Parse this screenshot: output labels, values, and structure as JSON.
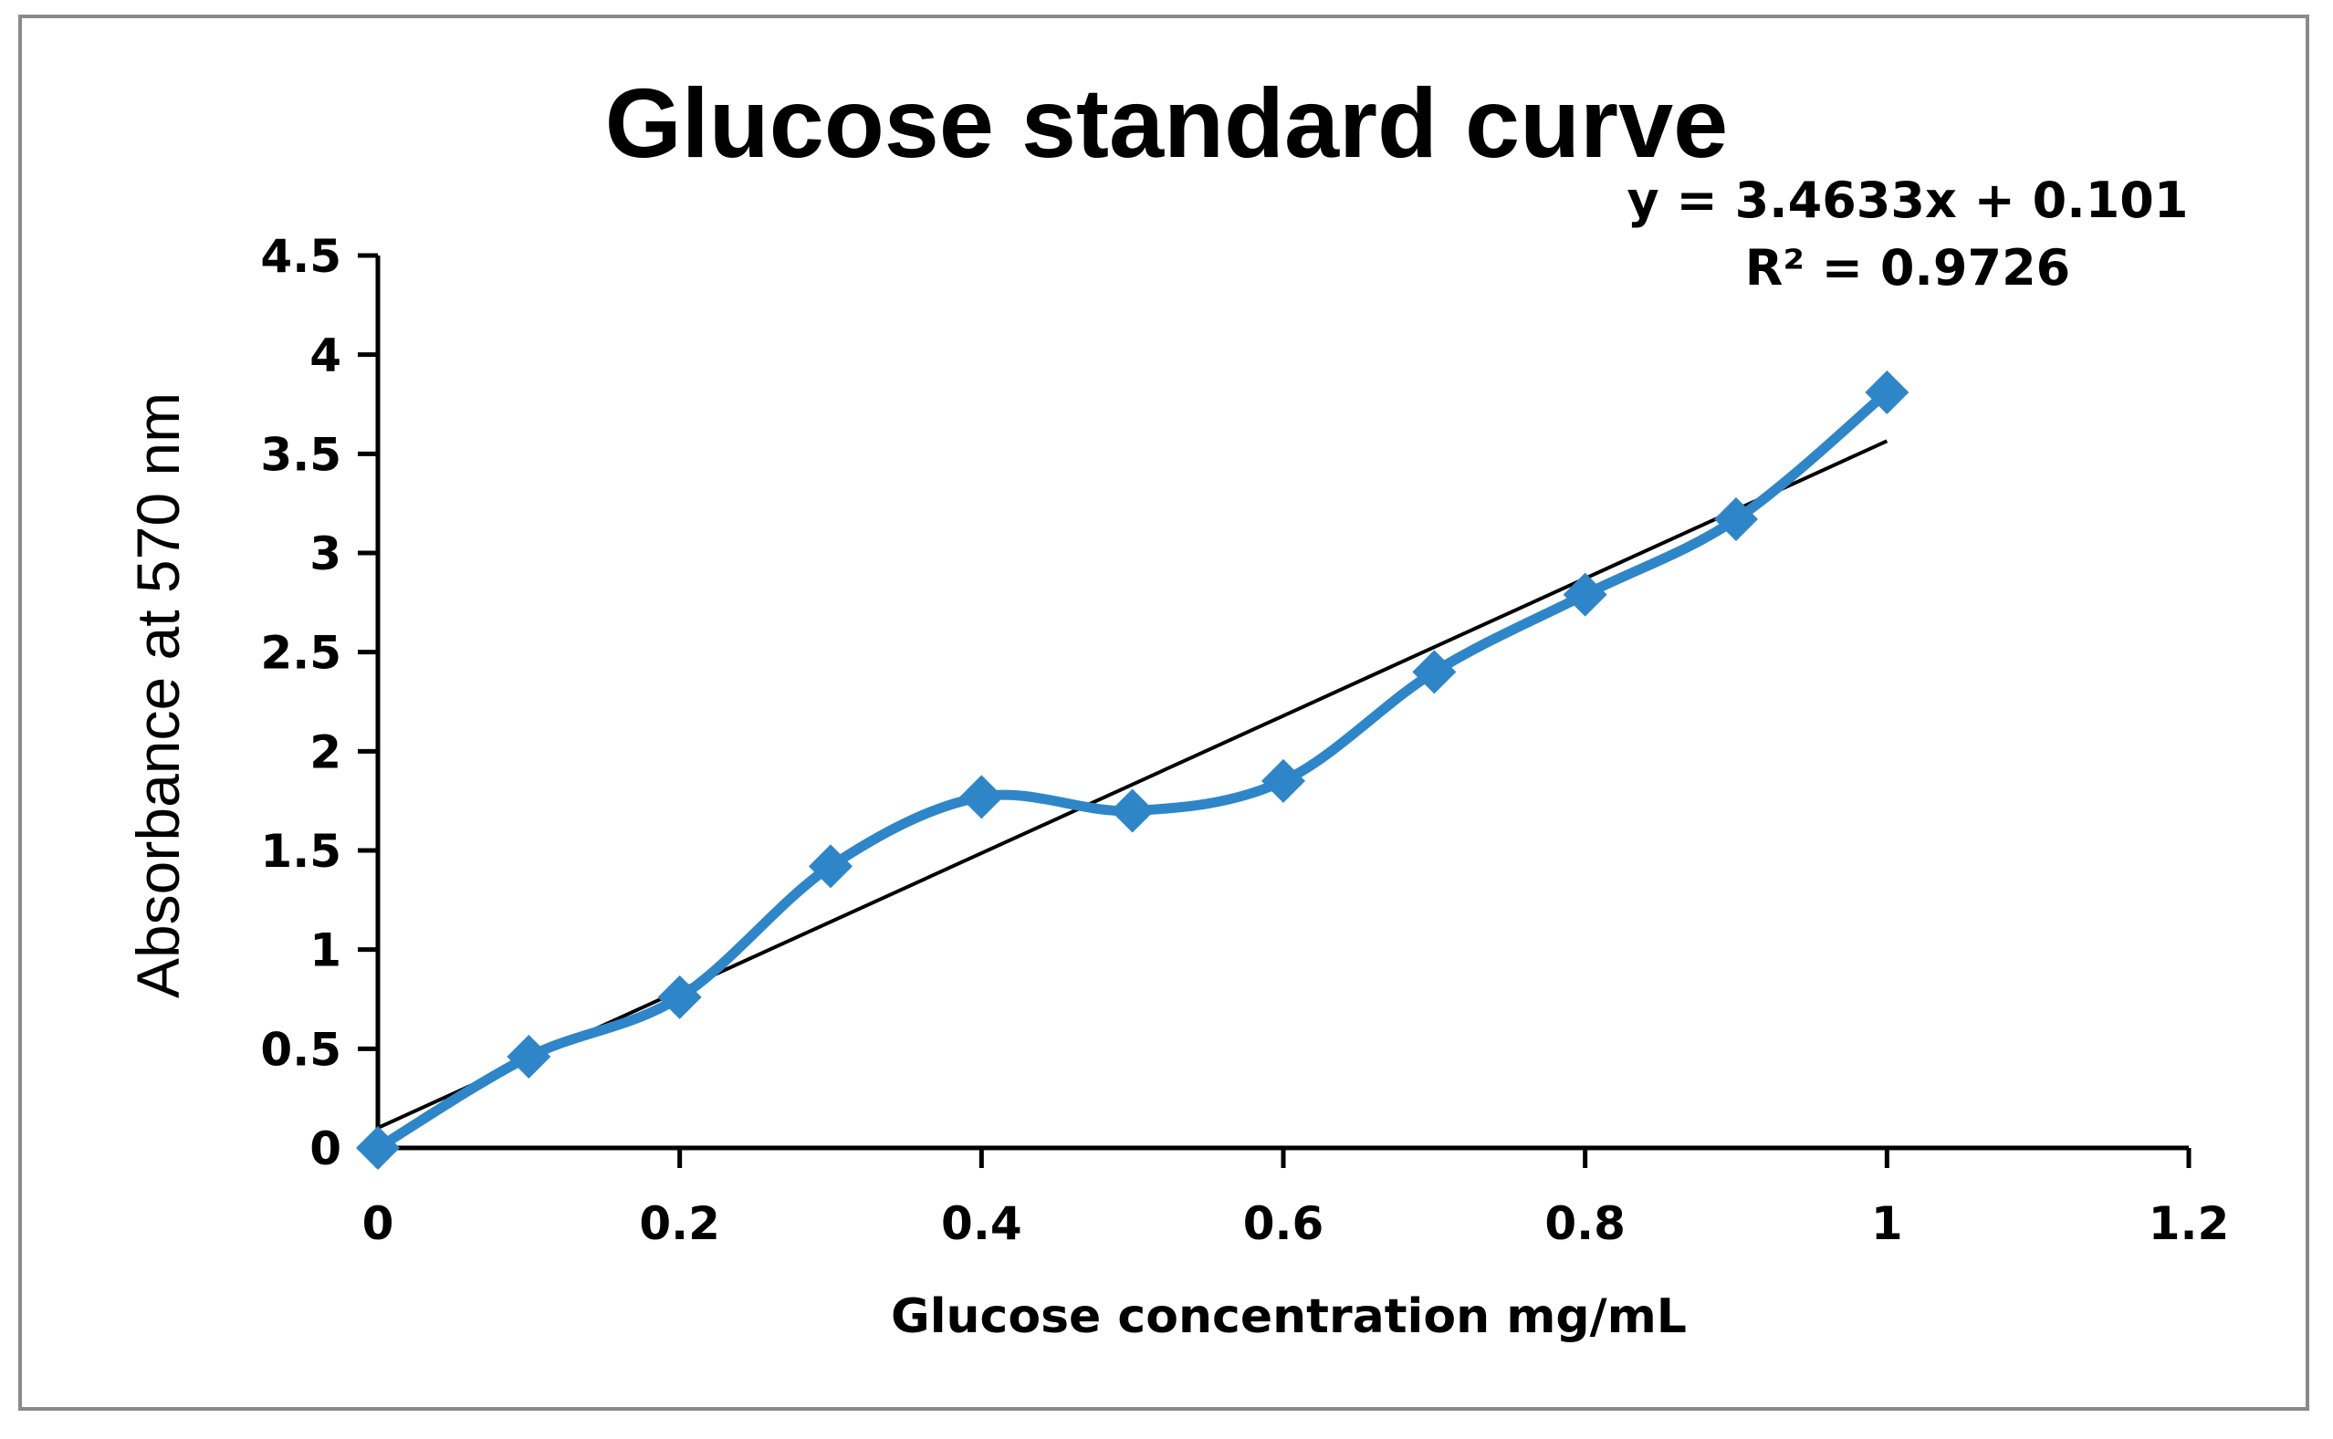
{
  "chart_data": {
    "type": "scatter",
    "title": "Glucose standard curve",
    "xlabel": "Glucose concentration mg/mL",
    "ylabel": "Absorbance at 570 nm",
    "xlim": [
      0,
      1.2
    ],
    "ylim": [
      0,
      4.5
    ],
    "x_ticks": [
      "0",
      "0.2",
      "0.4",
      "0.6",
      "0.8",
      "1",
      "1.2"
    ],
    "y_ticks": [
      "0",
      "0.5",
      "1",
      "1.5",
      "2",
      "2.5",
      "3",
      "3.5",
      "4",
      "4.5"
    ],
    "grid": false,
    "series": [
      {
        "name": "Absorbance",
        "style": "smooth line with diamond markers",
        "color": "#2e86c8",
        "x": [
          0,
          0.1,
          0.2,
          0.3,
          0.4,
          0.5,
          0.6,
          0.7,
          0.8,
          0.9,
          1.0
        ],
        "values": [
          0.0,
          0.46,
          0.76,
          1.42,
          1.77,
          1.7,
          1.85,
          2.4,
          2.79,
          3.17,
          3.81
        ]
      }
    ],
    "trendline": {
      "type": "linear",
      "color": "#000000",
      "slope": 3.4633,
      "intercept": 0.101,
      "x_range": [
        0,
        1.0
      ],
      "equation_label": "y = 3.4633x + 0.101",
      "r2_label": "R² = 0.9726"
    }
  }
}
